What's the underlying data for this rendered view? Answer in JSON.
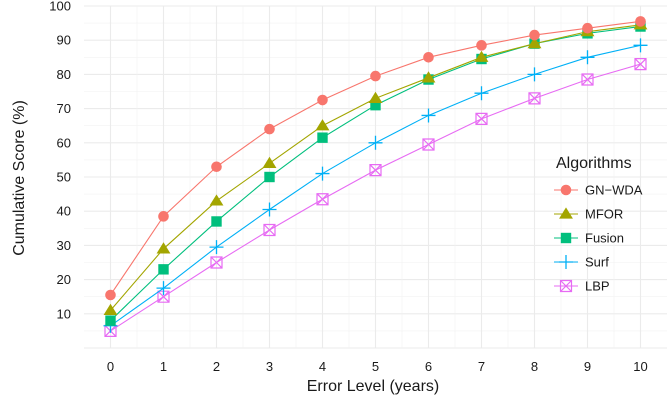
{
  "chart_data": {
    "type": "line",
    "title": "",
    "xlabel": "Error Level (years)",
    "ylabel": "Cumulative Score (%)",
    "x": [
      0,
      1,
      2,
      3,
      4,
      5,
      6,
      7,
      8,
      9,
      10
    ],
    "xlim": [
      -0.5,
      10.5
    ],
    "ylim": [
      0,
      100
    ],
    "y_ticks": [
      10,
      20,
      30,
      40,
      50,
      60,
      70,
      80,
      90,
      100
    ],
    "grid": true,
    "legend": {
      "title": "Algorithms",
      "position": "right"
    },
    "series": [
      {
        "name": "GN−WDA",
        "color": "#F8766D",
        "marker": "circle",
        "values": [
          15.5,
          38.5,
          53,
          64,
          72.5,
          79.5,
          85,
          88.5,
          91.5,
          93.5,
          95.5
        ]
      },
      {
        "name": "MFOR",
        "color": "#A3A500",
        "marker": "triangle",
        "values": [
          11,
          29,
          43,
          54,
          65,
          73,
          79,
          85,
          89,
          92.5,
          94.5
        ]
      },
      {
        "name": "Fusion",
        "color": "#00BF7D",
        "marker": "square",
        "values": [
          8,
          23,
          37,
          50,
          61.5,
          71,
          78.5,
          84.5,
          89,
          92,
          94
        ]
      },
      {
        "name": "Surf",
        "color": "#00B0F6",
        "marker": "plus",
        "values": [
          6.5,
          17.5,
          29.5,
          40.5,
          51,
          60,
          68,
          74.5,
          80,
          85,
          88.5
        ]
      },
      {
        "name": "LBP",
        "color": "#E76BF3",
        "marker": "boxcross",
        "values": [
          5,
          15,
          25,
          34.5,
          43.5,
          52,
          59.5,
          67,
          73,
          78.5,
          83
        ]
      }
    ]
  }
}
